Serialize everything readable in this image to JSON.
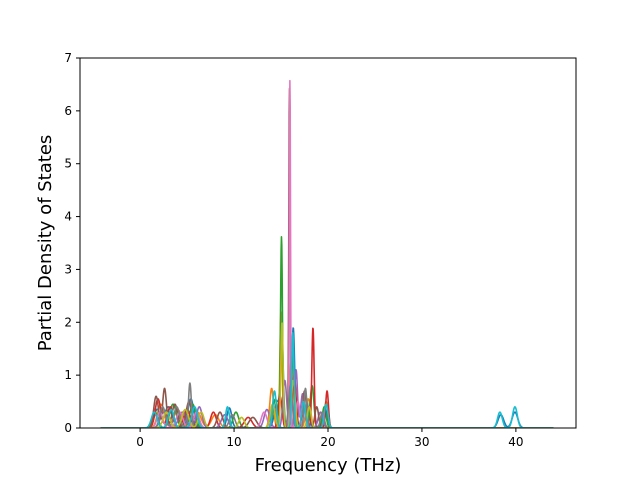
{
  "chart_data": {
    "type": "line",
    "title": "",
    "xlabel": "Frequency (THz)",
    "ylabel": "Partial Density of States",
    "xlim": [
      -6.4,
      46.4
    ],
    "ylim": [
      0,
      7
    ],
    "xticks": [
      0,
      10,
      20,
      30,
      40
    ],
    "yticks": [
      0,
      1,
      2,
      3,
      4,
      5,
      6,
      7
    ],
    "x_range": [
      -4.2,
      44.0
    ],
    "grid": false,
    "legend": "none",
    "series": [
      {
        "color": "#1f77b4",
        "peaks": [
          [
            1.8,
            0.35,
            0.3
          ],
          [
            3.0,
            0.4,
            0.4
          ],
          [
            5.4,
            0.55,
            0.3
          ],
          [
            9.5,
            0.38,
            0.25
          ],
          [
            14.6,
            0.5,
            0.3
          ],
          [
            15.1,
            1.6,
            0.15
          ],
          [
            16.3,
            1.9,
            0.15
          ],
          [
            17.6,
            0.6,
            0.3
          ],
          [
            19.7,
            0.35,
            0.25
          ],
          [
            38.4,
            0.25,
            0.3
          ],
          [
            39.9,
            0.3,
            0.3
          ]
        ]
      },
      {
        "color": "#ff7f0e",
        "peaks": [
          [
            2.2,
            0.45,
            0.35
          ],
          [
            4.0,
            0.35,
            0.4
          ],
          [
            6.1,
            0.3,
            0.4
          ],
          [
            8.0,
            0.25,
            0.4
          ],
          [
            14.0,
            0.75,
            0.2
          ],
          [
            15.0,
            2.2,
            0.12
          ],
          [
            16.1,
            1.3,
            0.2
          ],
          [
            17.9,
            0.55,
            0.25
          ],
          [
            19.8,
            0.5,
            0.2
          ]
        ]
      },
      {
        "color": "#2ca02c",
        "peaks": [
          [
            1.6,
            0.3,
            0.3
          ],
          [
            3.5,
            0.45,
            0.35
          ],
          [
            5.6,
            0.45,
            0.3
          ],
          [
            10.2,
            0.3,
            0.3
          ],
          [
            14.4,
            0.55,
            0.25
          ],
          [
            15.05,
            3.6,
            0.1
          ],
          [
            16.2,
            1.5,
            0.15
          ],
          [
            18.3,
            0.8,
            0.2
          ],
          [
            19.6,
            0.4,
            0.2
          ]
        ]
      },
      {
        "color": "#d62728",
        "peaks": [
          [
            1.9,
            0.55,
            0.3
          ],
          [
            3.2,
            0.4,
            0.3
          ],
          [
            5.0,
            0.35,
            0.35
          ],
          [
            7.8,
            0.3,
            0.3
          ],
          [
            11.5,
            0.2,
            0.4
          ],
          [
            14.9,
            0.6,
            0.2
          ],
          [
            16.4,
            1.0,
            0.2
          ],
          [
            18.4,
            1.9,
            0.12
          ],
          [
            19.9,
            0.7,
            0.15
          ]
        ]
      },
      {
        "color": "#9467bd",
        "peaks": [
          [
            2.5,
            0.3,
            0.35
          ],
          [
            4.5,
            0.3,
            0.4
          ],
          [
            6.3,
            0.4,
            0.3
          ],
          [
            9.0,
            0.25,
            0.35
          ],
          [
            13.5,
            0.35,
            0.3
          ],
          [
            15.4,
            0.9,
            0.2
          ],
          [
            16.6,
            1.1,
            0.15
          ],
          [
            17.3,
            0.65,
            0.2
          ],
          [
            19.2,
            0.3,
            0.25
          ]
        ]
      },
      {
        "color": "#8c564b",
        "peaks": [
          [
            1.7,
            0.6,
            0.25
          ],
          [
            2.6,
            0.75,
            0.2
          ],
          [
            3.7,
            0.45,
            0.3
          ],
          [
            5.2,
            0.5,
            0.3
          ],
          [
            8.5,
            0.3,
            0.3
          ],
          [
            12.0,
            0.2,
            0.4
          ],
          [
            15.9,
            6.45,
            0.07
          ],
          [
            17.5,
            0.7,
            0.2
          ],
          [
            18.8,
            0.4,
            0.2
          ]
        ]
      },
      {
        "color": "#e377c2",
        "peaks": [
          [
            2.1,
            0.3,
            0.3
          ],
          [
            4.2,
            0.3,
            0.35
          ],
          [
            6.0,
            0.3,
            0.3
          ],
          [
            13.2,
            0.3,
            0.3
          ],
          [
            15.95,
            6.65,
            0.06
          ],
          [
            16.8,
            0.5,
            0.2
          ]
        ]
      },
      {
        "color": "#7f7f7f",
        "peaks": [
          [
            2.4,
            0.4,
            0.3
          ],
          [
            3.9,
            0.4,
            0.3
          ],
          [
            5.3,
            0.85,
            0.15
          ],
          [
            9.8,
            0.25,
            0.3
          ],
          [
            14.2,
            0.4,
            0.3
          ],
          [
            16.0,
            0.8,
            0.2
          ],
          [
            17.6,
            0.75,
            0.15
          ],
          [
            19.4,
            0.3,
            0.2
          ]
        ]
      },
      {
        "color": "#bcbd22",
        "peaks": [
          [
            2.8,
            0.3,
            0.35
          ],
          [
            4.8,
            0.35,
            0.35
          ],
          [
            6.5,
            0.3,
            0.3
          ],
          [
            10.8,
            0.2,
            0.3
          ],
          [
            14.1,
            0.45,
            0.25
          ],
          [
            15.1,
            2.0,
            0.12
          ],
          [
            16.3,
            0.9,
            0.2
          ],
          [
            18.0,
            0.4,
            0.2
          ]
        ]
      },
      {
        "color": "#17becf",
        "peaks": [
          [
            1.5,
            0.3,
            0.3
          ],
          [
            3.3,
            0.35,
            0.3
          ],
          [
            5.8,
            0.4,
            0.3
          ],
          [
            9.3,
            0.4,
            0.2
          ],
          [
            14.3,
            0.7,
            0.2
          ],
          [
            16.25,
            1.8,
            0.12
          ],
          [
            17.4,
            0.5,
            0.2
          ],
          [
            19.8,
            0.45,
            0.2
          ],
          [
            38.3,
            0.3,
            0.25
          ],
          [
            39.9,
            0.4,
            0.25
          ]
        ]
      }
    ]
  }
}
